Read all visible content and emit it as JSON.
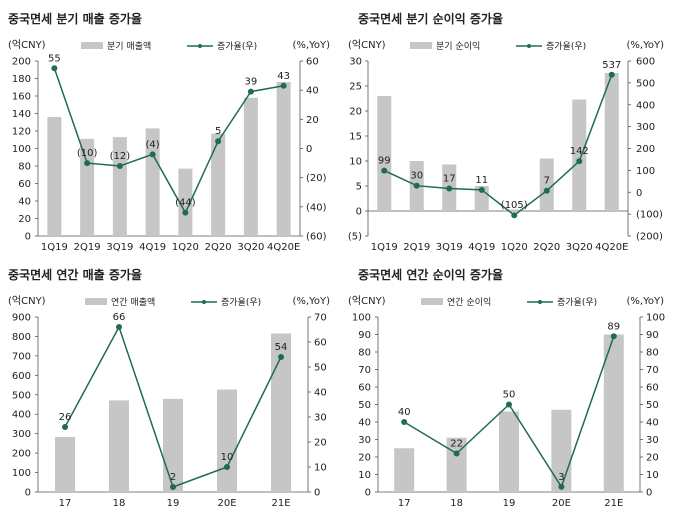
{
  "chart_data": [
    {
      "type": "bar",
      "title": "중국면세 분기 매출 증가율",
      "left_unit": "(억CNY)",
      "right_unit": "(%,YoY)",
      "categories": [
        "1Q19",
        "2Q19",
        "3Q19",
        "4Q19",
        "1Q20",
        "2Q20",
        "3Q20",
        "4Q20E"
      ],
      "series": [
        {
          "name": "분기 매출액",
          "kind": "bar",
          "axis": "left",
          "values": [
            136,
            111,
            113,
            123,
            77,
            117,
            158,
            176
          ]
        },
        {
          "name": "증가율(우)",
          "kind": "line",
          "axis": "right",
          "values": [
            55,
            -10,
            -12,
            -4,
            -44,
            5,
            39,
            43
          ],
          "labels": [
            "55",
            "(10)",
            "(12)",
            "(4)",
            "(44)",
            "5",
            "39",
            "43"
          ]
        }
      ],
      "left_ylim": [
        0,
        200
      ],
      "left_ticks": [
        "0",
        "20",
        "40",
        "60",
        "80",
        "100",
        "120",
        "140",
        "160",
        "180",
        "200"
      ],
      "right_ylim": [
        -60,
        60
      ],
      "right_ticks": [
        "(60)",
        "(40)",
        "(20)",
        "0",
        "20",
        "40",
        "60"
      ],
      "legend_position": "top-center"
    },
    {
      "type": "bar",
      "title": "중국면세 분기 순이익 증가율",
      "left_unit": "(억CNY)",
      "right_unit": "(%,YoY)",
      "categories": [
        "1Q19",
        "2Q19",
        "3Q19",
        "4Q19",
        "1Q20",
        "2Q20",
        "3Q20",
        "4Q20E"
      ],
      "series": [
        {
          "name": "분기 순이익",
          "kind": "bar",
          "axis": "left",
          "values": [
            23.0,
            10.0,
            9.3,
            5.0,
            0.3,
            10.5,
            22.3,
            27.6
          ]
        },
        {
          "name": "증가율(우)",
          "kind": "line",
          "axis": "right",
          "values": [
            99,
            30,
            17,
            11,
            -105,
            7,
            142,
            537
          ],
          "labels": [
            "99",
            "30",
            "17",
            "11",
            "(105)",
            "7",
            "142",
            "537"
          ]
        }
      ],
      "left_ylim": [
        -5,
        30
      ],
      "left_ticks": [
        "(5)",
        "0",
        "5",
        "10",
        "15",
        "20",
        "25",
        "30"
      ],
      "right_ylim": [
        -200,
        600
      ],
      "right_ticks": [
        "(200)",
        "(100)",
        "0",
        "100",
        "200",
        "300",
        "400",
        "500",
        "600"
      ],
      "legend_position": "top-center"
    },
    {
      "type": "bar",
      "title": "중국면세 연간 매출 증가율",
      "left_unit": "(억CNY)",
      "right_unit": "(%,YoY)",
      "categories": [
        "17",
        "18",
        "19",
        "20E",
        "21E"
      ],
      "series": [
        {
          "name": "연간 매출액",
          "kind": "bar",
          "axis": "left",
          "values": [
            283,
            471,
            479,
            527,
            815
          ]
        },
        {
          "name": "증가율(우)",
          "kind": "line",
          "axis": "right",
          "values": [
            26,
            66,
            2,
            10,
            54
          ],
          "labels": [
            "26",
            "66",
            "2",
            "10",
            "54"
          ]
        }
      ],
      "left_ylim": [
        0,
        900
      ],
      "left_ticks": [
        "0",
        "100",
        "200",
        "300",
        "400",
        "500",
        "600",
        "700",
        "800",
        "900"
      ],
      "right_ylim": [
        0,
        70
      ],
      "right_ticks": [
        "0",
        "10",
        "20",
        "30",
        "40",
        "50",
        "60",
        "70"
      ],
      "legend_position": "top-center"
    },
    {
      "type": "bar",
      "title": "중국면세 연간 순이익 증가율",
      "left_unit": "(억CNY)",
      "right_unit": "(%,YoY)",
      "categories": [
        "17",
        "18",
        "19",
        "20E",
        "21E"
      ],
      "series": [
        {
          "name": "연간 순이익",
          "kind": "bar",
          "axis": "left",
          "values": [
            25,
            31,
            46,
            47,
            90
          ]
        },
        {
          "name": "증가율(우)",
          "kind": "line",
          "axis": "right",
          "values": [
            40,
            22,
            50,
            3,
            89
          ],
          "labels": [
            "40",
            "22",
            "50",
            "3",
            "89"
          ]
        }
      ],
      "left_ylim": [
        0,
        100
      ],
      "left_ticks": [
        "0",
        "10",
        "20",
        "30",
        "40",
        "50",
        "60",
        "70",
        "80",
        "90",
        "100"
      ],
      "right_ylim": [
        0,
        100
      ],
      "right_ticks": [
        "0",
        "10",
        "20",
        "30",
        "40",
        "50",
        "60",
        "70",
        "80",
        "90",
        "100"
      ],
      "legend_position": "top-center"
    }
  ],
  "colors": {
    "bar": "#c6c6c6",
    "line": "#1f6b55",
    "marker": "#1f6b55",
    "text": "#222222",
    "axis": "#555555"
  }
}
